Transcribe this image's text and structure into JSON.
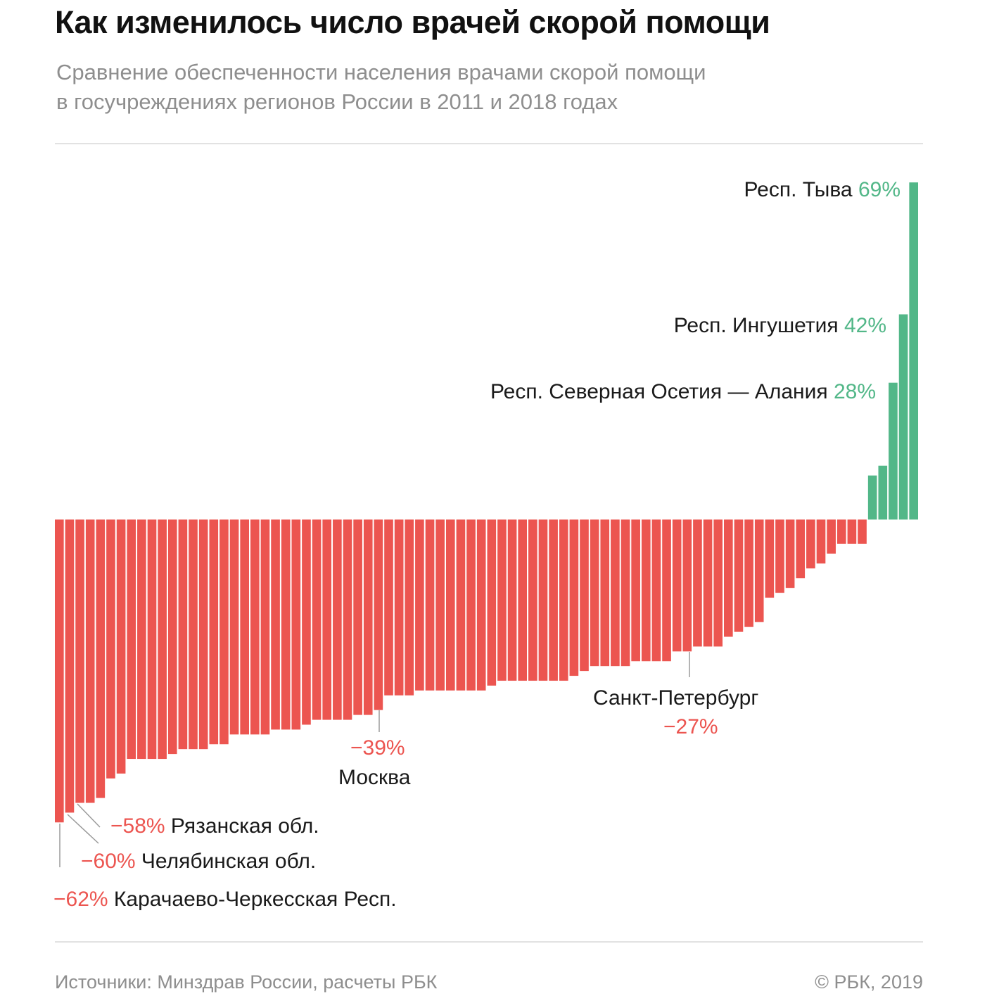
{
  "header": {
    "title": "Как изменилось число врачей скорой помощи",
    "subtitle_line1": "Сравнение обеспеченности населения врачами скорой помощи",
    "subtitle_line2": "в госучреждениях регионов России в 2011 и 2018 годах"
  },
  "footer": {
    "source": "Источники: Минздрав России, расчеты РБК",
    "copyright": "© РБК, 2019"
  },
  "chart_data": {
    "type": "bar",
    "title": "Как изменилось число врачей скорой помощи",
    "xlabel": "",
    "ylabel": "",
    "unit": "%",
    "ylim": [
      -62,
      69
    ],
    "grid": false,
    "legend": "none",
    "colors": {
      "negative": "#ec5550",
      "positive": "#52b788"
    },
    "values": [
      -62,
      -60,
      -58,
      -58,
      -57,
      -53,
      -52,
      -49,
      -49,
      -49,
      -49,
      -48,
      -47,
      -47,
      -47,
      -46,
      -46,
      -44,
      -44,
      -44,
      -44,
      -43,
      -43,
      -43,
      -42,
      -41,
      -41,
      -41,
      -41,
      -40,
      -40,
      -39,
      -36,
      -36,
      -36,
      -35,
      -35,
      -35,
      -35,
      -35,
      -35,
      -35,
      -34,
      -33,
      -33,
      -33,
      -33,
      -33,
      -33,
      -33,
      -32,
      -31,
      -30,
      -30,
      -30,
      -30,
      -29,
      -29,
      -29,
      -29,
      -27,
      -27,
      -26,
      -26,
      -26,
      -24,
      -23,
      -22,
      -21,
      -16,
      -15,
      -14,
      -12,
      -10,
      -9,
      -7,
      -5,
      -5,
      -5,
      9,
      11,
      28,
      42,
      69
    ],
    "annotations": [
      {
        "index": 83,
        "name": "Респ. Тыва",
        "value_label": "69%"
      },
      {
        "index": 82,
        "name": "Респ. Ингушетия",
        "value_label": "42%"
      },
      {
        "index": 81,
        "name": "Респ. Северная Осетия — Алания",
        "value_label": "28%"
      },
      {
        "index": 60,
        "name": "Санкт-Петербург",
        "value_label": "−27%"
      },
      {
        "index": 31,
        "name": "Москва",
        "value_label": "−39%"
      },
      {
        "index": 2,
        "name": "Рязанская обл.",
        "value_label": "−58%"
      },
      {
        "index": 1,
        "name": "Челябинская обл.",
        "value_label": "−60%"
      },
      {
        "index": 0,
        "name": "Карачаево-Черкесская Респ.",
        "value_label": "−62%"
      }
    ]
  }
}
